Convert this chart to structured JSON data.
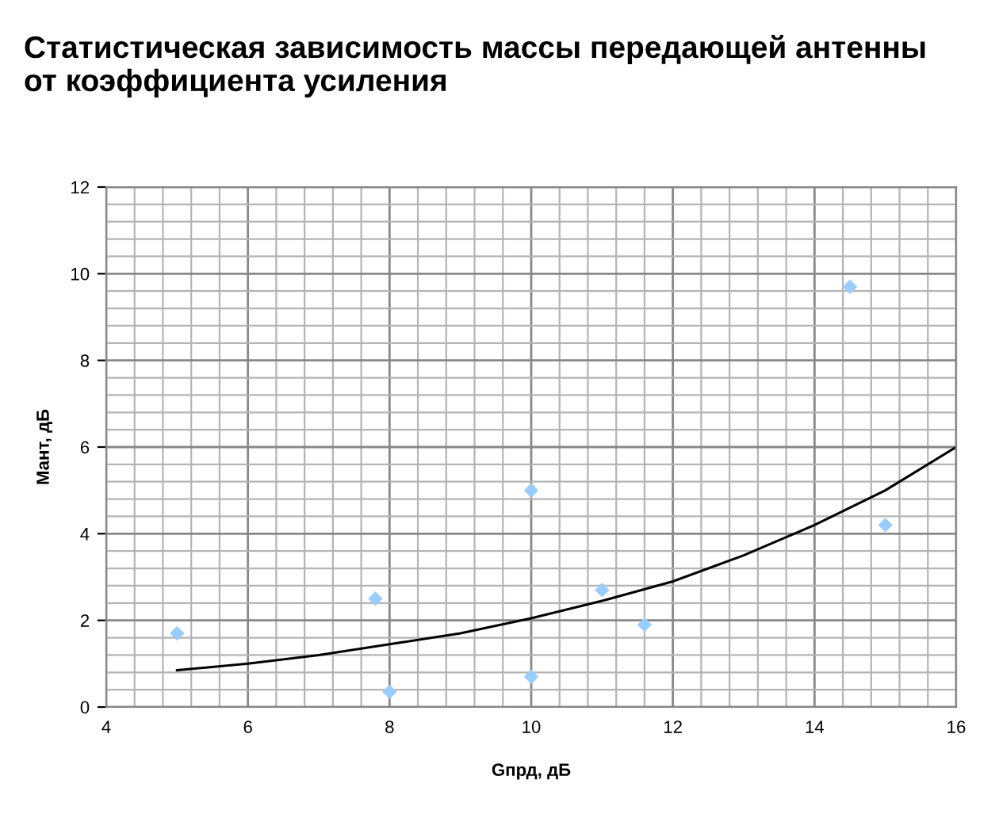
{
  "chart_data": {
    "type": "scatter",
    "title": "Статистическая зависимость массы передающей антенны\nот коэффициента усиления",
    "xlabel": "Gпрд, дБ",
    "ylabel": "Мант, дБ",
    "xlim": [
      4,
      16
    ],
    "xticks": [
      4,
      6,
      8,
      10,
      12,
      14,
      16
    ],
    "ylim": [
      0,
      12
    ],
    "yticks": [
      0,
      2,
      4,
      6,
      8,
      10,
      12
    ],
    "grid": true,
    "legend": false,
    "series": [
      {
        "color": "#99ccff",
        "marker": "diamond",
        "x": [
          5,
          7.8,
          8,
          10,
          10,
          11,
          11.6,
          14.5,
          15
        ],
        "values": [
          1.7,
          2.5,
          0.35,
          5,
          0.7,
          2.7,
          1.9,
          9.7,
          4.2
        ]
      },
      {
        "type": "line",
        "color": "#000000",
        "marker": "none",
        "line_style": "solid",
        "x": [
          5,
          6,
          7,
          8,
          9,
          10,
          11,
          12,
          13,
          14,
          15,
          16
        ],
        "values": [
          0.85,
          1.0,
          1.2,
          1.45,
          1.7,
          2.05,
          2.45,
          2.9,
          3.5,
          4.2,
          5.0,
          6.0
        ]
      }
    ]
  }
}
